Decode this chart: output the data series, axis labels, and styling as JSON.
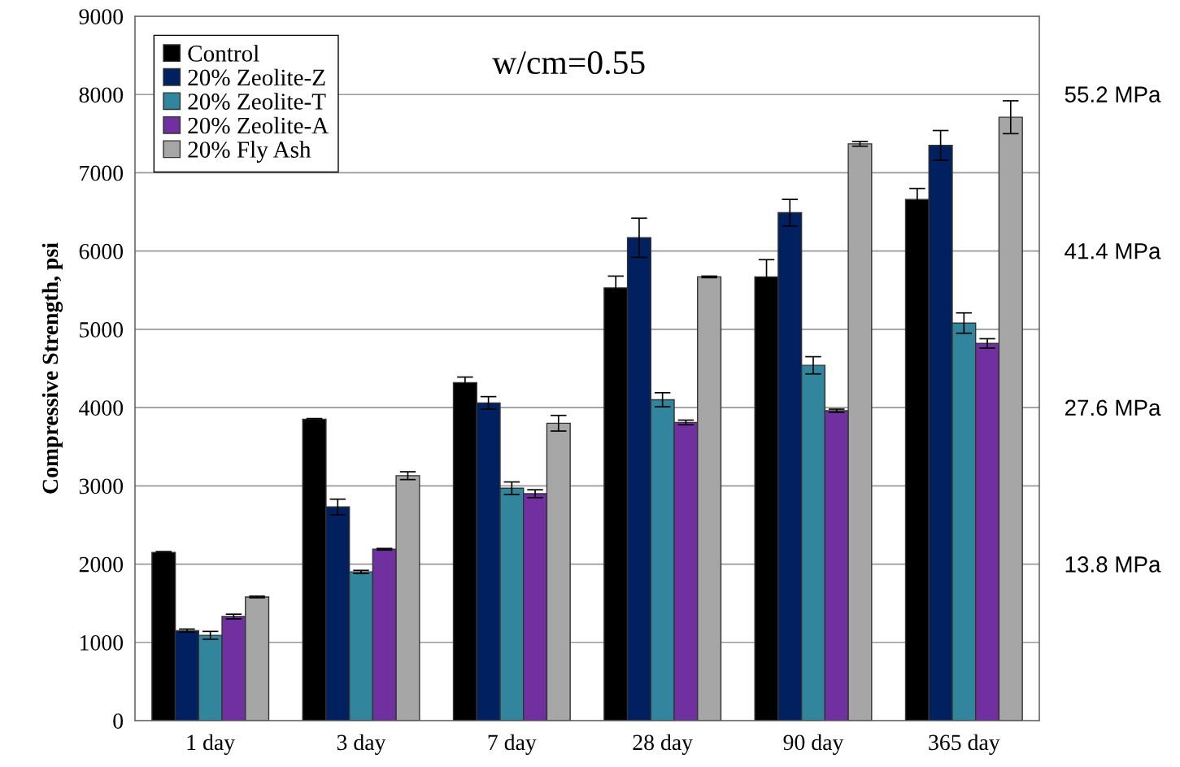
{
  "chart_data": {
    "type": "bar",
    "ylabel": "Compressive Strength, psi",
    "categories": [
      "1 day",
      "3 day",
      "7 day",
      "28 day",
      "90 day",
      "365 day"
    ],
    "series": [
      {
        "name": "Control",
        "color": "#000000",
        "values": [
          2150,
          3850,
          4320,
          5530,
          5670,
          6660
        ],
        "errors": [
          10,
          10,
          70,
          150,
          220,
          140
        ]
      },
      {
        "name": "20% Zeolite-Z",
        "color": "#002060",
        "values": [
          1150,
          2730,
          4060,
          6170,
          6490,
          7350
        ],
        "errors": [
          20,
          100,
          80,
          250,
          170,
          190
        ]
      },
      {
        "name": "20% Zeolite-T",
        "color": "#31859c",
        "values": [
          1090,
          1900,
          2970,
          4100,
          4540,
          5080
        ],
        "errors": [
          50,
          20,
          80,
          90,
          110,
          130
        ]
      },
      {
        "name": "20% Zeolite-A",
        "color": "#7030a0",
        "values": [
          1330,
          2190,
          2900,
          3810,
          3960,
          4820
        ],
        "errors": [
          30,
          10,
          50,
          30,
          20,
          60
        ]
      },
      {
        "name": "20% Fly Ash",
        "color": "#a6a6a6",
        "values": [
          1580,
          3130,
          3800,
          5670,
          7370,
          7710
        ],
        "errors": [
          10,
          50,
          100,
          10,
          30,
          210
        ]
      }
    ],
    "ylim": [
      0,
      9000
    ],
    "yticks": [
      0,
      1000,
      2000,
      3000,
      4000,
      5000,
      6000,
      7000,
      8000,
      9000
    ],
    "y2lim": [
      0,
      62.05
    ],
    "y2ticks": [
      {
        "value": 13.8,
        "label": "13.8 MPa"
      },
      {
        "value": 27.6,
        "label": "27.6 MPa"
      },
      {
        "value": 41.4,
        "label": "41.4 MPa"
      },
      {
        "value": 55.2,
        "label": "55.2 MPa"
      }
    ],
    "annotations": [
      "w/cm=0.55"
    ],
    "grid": "y",
    "legend": "top left"
  }
}
